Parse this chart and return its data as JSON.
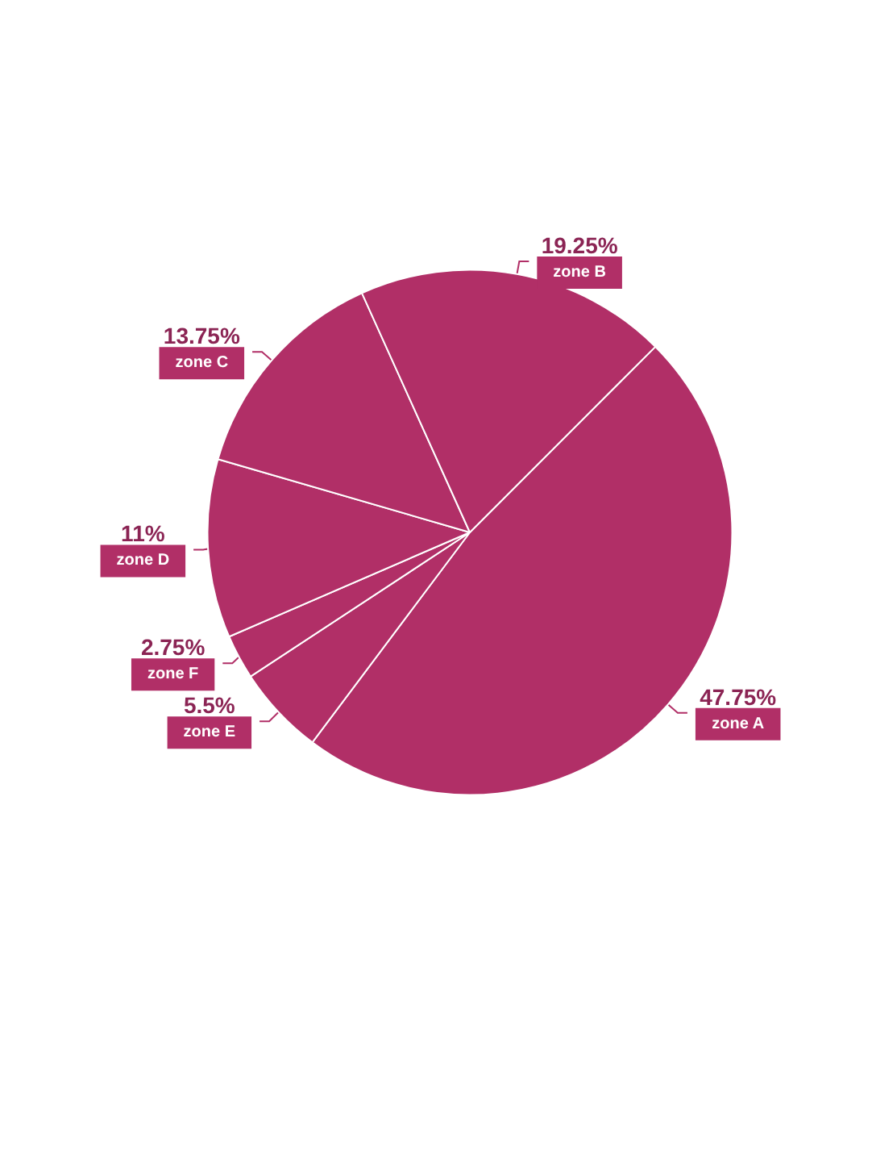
{
  "chart_data": {
    "type": "pie",
    "categories": [
      "zone A",
      "zone E",
      "zone F",
      "zone D",
      "zone C",
      "zone B"
    ],
    "values": [
      47.75,
      5.5,
      2.75,
      11,
      13.75,
      19.25
    ],
    "colors": [
      "#b12f67",
      "#b12f67",
      "#b12f67",
      "#b12f67",
      "#b12f67",
      "#b12f67"
    ],
    "value_labels": [
      "47.75%",
      "5.5%",
      "2.75%",
      "11%",
      "13.75%",
      "19.25%"
    ],
    "legend": false
  }
}
